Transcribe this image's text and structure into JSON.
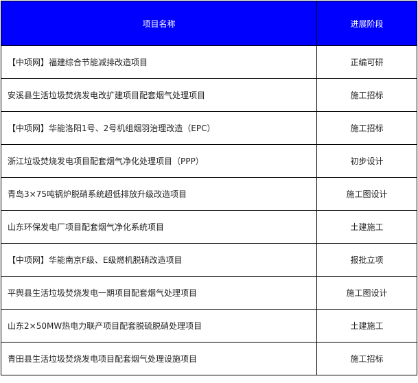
{
  "colors": {
    "header_bg": "#0000ff",
    "header_text": "#ffffff",
    "border": "#000000"
  },
  "table": {
    "headers": [
      "项目名称",
      "进展阶段"
    ],
    "rows": [
      {
        "name": "【中项网】福建综合节能减排改造项目",
        "stage": "正编可研"
      },
      {
        "name": "安溪县生活垃圾焚烧发电改扩建项目配套烟气处理项目",
        "stage": "施工招标"
      },
      {
        "name": "【中项网】华能洛阳1号、2号机组烟羽治理改造（EPC）",
        "stage": "施工招标"
      },
      {
        "name": "浙江垃圾焚烧发电项目配套烟气净化处理项目（PPP）",
        "stage": "初步设计"
      },
      {
        "name": "青岛3×75吨锅炉脱硝系统超低排放升级改造项目",
        "stage": "施工图设计"
      },
      {
        "name": "山东环保发电厂项目配套烟气净化系统项目",
        "stage": "土建施工"
      },
      {
        "name": "【中项网】华能南京F级、E级燃机脱硝改造项目",
        "stage": "报批立项"
      },
      {
        "name": "平舆县生活垃圾焚烧发电一期项目配套烟气处理项目",
        "stage": "施工图设计"
      },
      {
        "name": "山东2×50MW热电力联产项目配套脱硫脱硝处理项目",
        "stage": "土建施工"
      },
      {
        "name": "青田县生活垃圾焚烧发电项目配套烟气处理设施项目",
        "stage": "施工招标"
      }
    ]
  }
}
